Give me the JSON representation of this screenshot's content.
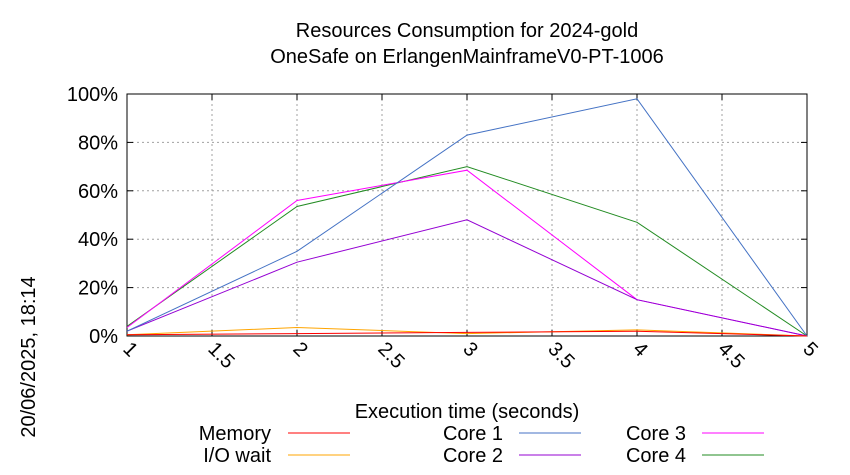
{
  "chart_data": {
    "type": "line",
    "title": "Resources Consumption for 2024-gold",
    "subtitle": "OneSafe on ErlangenMainframeV0-PT-1006",
    "xlabel": "Execution time (seconds)",
    "ylabel": "",
    "side_label": "20/06/2025, 18:14",
    "xlim": [
      1,
      5
    ],
    "ylim": [
      0,
      100
    ],
    "x_ticks": [
      "1",
      "1.5",
      "2",
      "2.5",
      "3",
      "3.5",
      "4",
      "4.5",
      "5"
    ],
    "y_ticks": [
      "0%",
      "20%",
      "40%",
      "60%",
      "80%",
      "100%"
    ],
    "series": [
      {
        "name": "Memory",
        "color": "#ff0000",
        "x": [
          1,
          2,
          3,
          4,
          5
        ],
        "y": [
          0.5,
          1,
          1.5,
          2,
          0
        ]
      },
      {
        "name": "I/O wait",
        "color": "#ffa500",
        "x": [
          1,
          2,
          3,
          4,
          5
        ],
        "y": [
          0.5,
          3.5,
          1,
          2.5,
          0
        ]
      },
      {
        "name": "Core 1",
        "color": "#4472c4",
        "x": [
          1,
          2,
          3,
          4,
          5
        ],
        "y": [
          2,
          35,
          83,
          98,
          0
        ]
      },
      {
        "name": "Core 2",
        "color": "#9400d3",
        "x": [
          1,
          2,
          3,
          4,
          5
        ],
        "y": [
          2,
          30.5,
          48,
          15,
          0
        ]
      },
      {
        "name": "Core 3",
        "color": "#ff00ff",
        "x": [
          1,
          2,
          3,
          4,
          5
        ],
        "y": [
          3.5,
          56,
          68.5,
          15,
          0
        ]
      },
      {
        "name": "Core 4",
        "color": "#228b22",
        "x": [
          1,
          2,
          3,
          4,
          5
        ],
        "y": [
          4,
          53.5,
          70,
          47,
          0
        ]
      }
    ],
    "grid": true,
    "legend_position": "bottom"
  }
}
